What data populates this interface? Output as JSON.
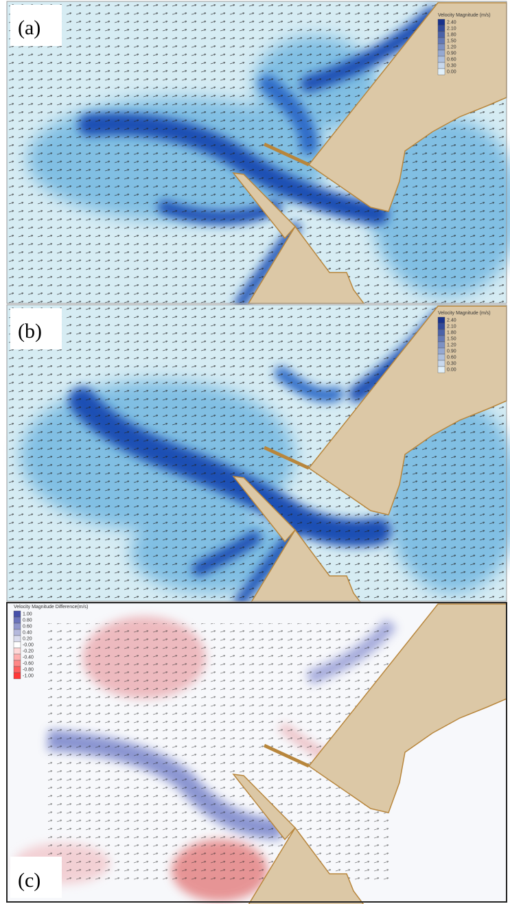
{
  "panels": [
    {
      "label": "(a)",
      "legend_title": "Velocity Magnitude (m/s)",
      "legend_labels": [
        "2.40",
        "2.10",
        "1.80",
        "1.50",
        "1.20",
        "0.90",
        "0.60",
        "0.30",
        "0.00"
      ]
    },
    {
      "label": "(b)",
      "legend_title": "Velocity Magnitude (m/s)",
      "legend_labels": [
        "2.40",
        "2.10",
        "1.80",
        "1.50",
        "1.20",
        "0.90",
        "0.60",
        "0.30",
        "0.00"
      ]
    },
    {
      "label": "(c)",
      "legend_title": "Velocity Magnitude Difference(m/s)",
      "legend_labels": [
        "1.00",
        "0.80",
        "0.60",
        "0.40",
        "0.20",
        "-0.00",
        "-0.20",
        "-0.40",
        "-0.60",
        "-0.80",
        "-1.00"
      ]
    }
  ]
}
